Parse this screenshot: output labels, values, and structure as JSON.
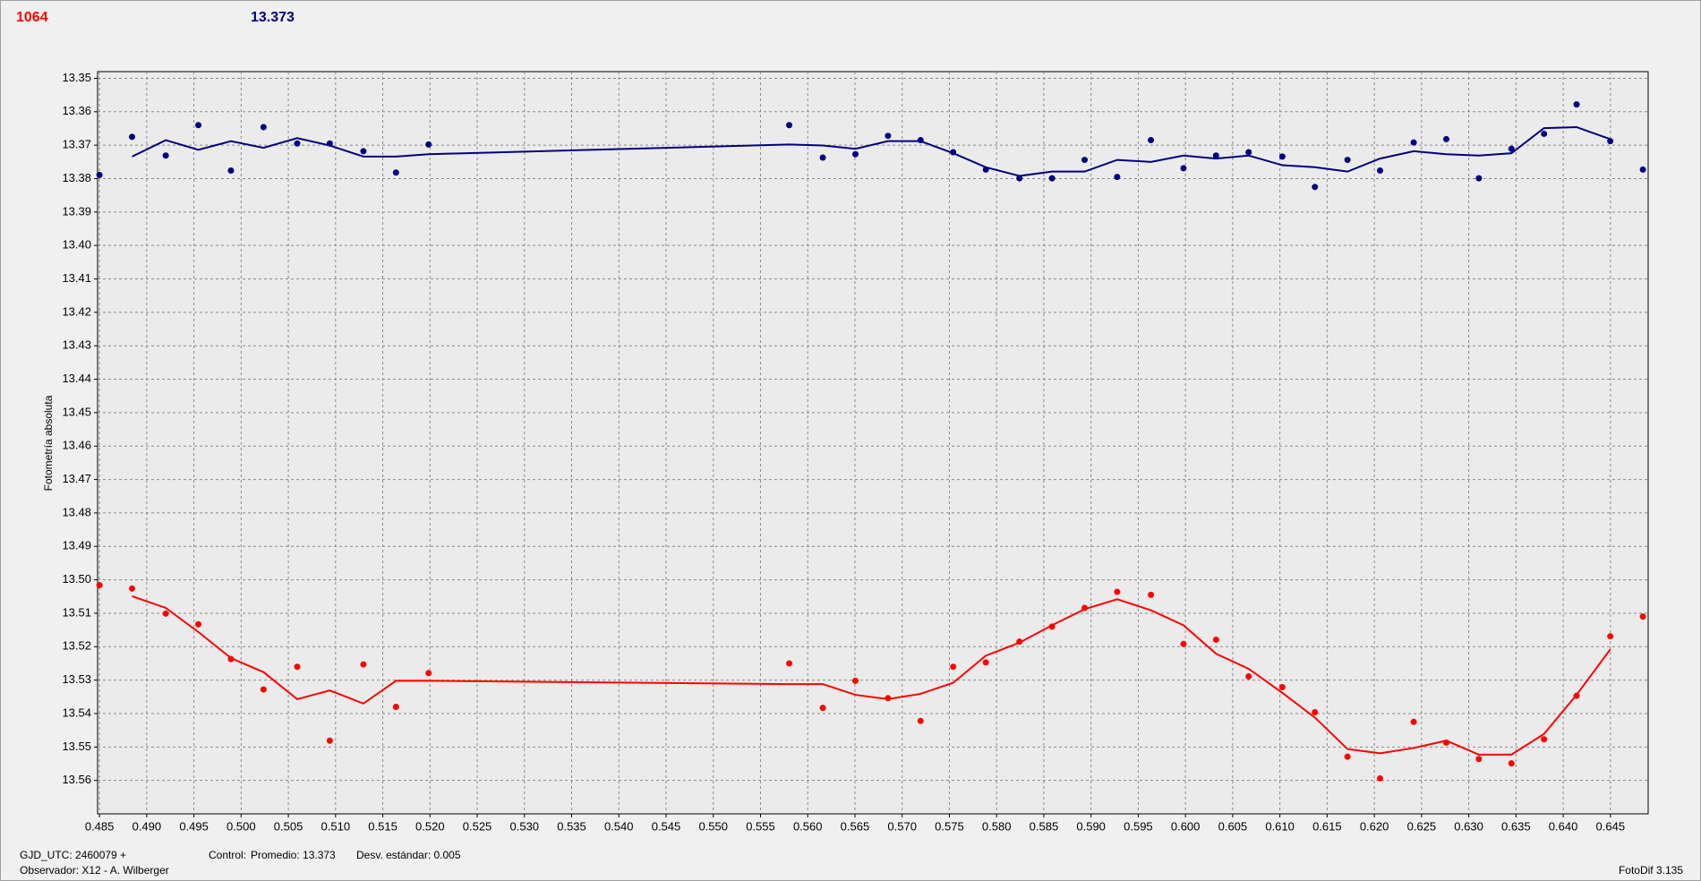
{
  "header": {
    "left_value": "1064",
    "right_value": "13.373"
  },
  "footer": {
    "gjd": "GJD_UTC: 2460079 +",
    "observer": "Observador: X12 - A. Wilberger",
    "control": "Control:",
    "mean": "Promedio: 13.373",
    "stdev": "Desv. estándar: 0.005",
    "version": "FotoDif 3.135"
  },
  "chart_data": {
    "type": "scatter",
    "y_label": "Fotometría absoluta",
    "x": [
      0.485,
      0.48845,
      0.49202,
      0.49547,
      0.49892,
      0.50237,
      0.50594,
      0.50939,
      0.51295,
      0.5164,
      0.51985,
      0.55804,
      0.5616,
      0.56505,
      0.5685,
      0.57195,
      0.5754,
      0.57886,
      0.58242,
      0.58587,
      0.58932,
      0.59277,
      0.59634,
      0.59979,
      0.60324,
      0.60669,
      0.61026,
      0.61371,
      0.61716,
      0.62061,
      0.62417,
      0.62762,
      0.63107,
      0.63452,
      0.63797,
      0.64142,
      0.64499,
      0.64844
    ],
    "series": [
      {
        "style": "markers",
        "color": "#000080",
        "values": [
          13.3789,
          13.3675,
          13.3731,
          13.364,
          13.3776,
          13.3646,
          13.3695,
          13.3695,
          13.3718,
          13.3782,
          13.3698,
          13.364,
          13.3737,
          13.3727,
          13.3672,
          13.3685,
          13.3721,
          13.3773,
          13.3799,
          13.3799,
          13.3744,
          13.3795,
          13.3685,
          13.3769,
          13.3731,
          13.3721,
          13.3734,
          13.3825,
          13.3744,
          13.3776,
          13.3692,
          13.3682,
          13.3799,
          13.3711,
          13.3666,
          13.3578,
          13.3688,
          13.3773
        ]
      },
      {
        "style": "line",
        "color": "#000080",
        "values": [
          null,
          13.3734,
          13.3685,
          13.3714,
          13.3688,
          13.3708,
          13.3679,
          13.3701,
          13.3734,
          13.3734,
          13.3727,
          13.3698,
          13.3701,
          13.3711,
          13.3688,
          13.3688,
          13.3724,
          13.3766,
          13.3792,
          13.3779,
          13.3779,
          13.3744,
          13.375,
          13.3731,
          13.374,
          13.3731,
          13.376,
          13.3766,
          13.3779,
          13.374,
          13.3718,
          13.3727,
          13.3731,
          13.3724,
          13.3649,
          13.3646,
          13.3682,
          null
        ]
      },
      {
        "style": "markers",
        "color": "#ff0000",
        "values": [
          13.5016,
          13.5026,
          13.5101,
          13.5133,
          13.5237,
          13.5328,
          13.526,
          13.5481,
          13.5253,
          13.538,
          13.5279,
          13.525,
          13.5383,
          13.5302,
          13.5354,
          13.5422,
          13.526,
          13.5247,
          13.5185,
          13.514,
          13.5084,
          13.5036,
          13.5045,
          13.5192,
          13.5179,
          13.5289,
          13.5321,
          13.5396,
          13.5529,
          13.5594,
          13.5425,
          13.5487,
          13.5536,
          13.5549,
          13.5477,
          13.5347,
          13.5169,
          13.511
        ]
      },
      {
        "style": "line",
        "color": "#ff0000",
        "values": [
          null,
          13.5049,
          13.5084,
          13.5156,
          13.5234,
          13.5276,
          13.5357,
          13.5331,
          13.537,
          13.5302,
          13.5302,
          13.5312,
          13.5312,
          13.5344,
          13.5357,
          13.5341,
          13.5308,
          13.5227,
          13.5188,
          13.5136,
          13.5088,
          13.5058,
          13.5091,
          13.5136,
          13.5221,
          13.5266,
          13.5338,
          13.5412,
          13.5506,
          13.5519,
          13.5503,
          13.5481,
          13.5523,
          13.5523,
          13.5461,
          13.5344,
          13.5208,
          null
        ]
      }
    ],
    "xlim": [
      0.4848,
      0.649
    ],
    "ylim": [
      13.348,
      13.57
    ],
    "y_inverted": true,
    "grid": true,
    "xticks": [
      0.485,
      {
        "value": 0.49,
        "label": "0.490"
      },
      0.495,
      {
        "value": 0.5,
        "label": "0.500"
      },
      0.505,
      {
        "value": 0.51,
        "label": "0.510"
      },
      0.515,
      {
        "value": 0.52,
        "label": "0.520"
      },
      0.525,
      {
        "value": 0.53,
        "label": "0.530"
      },
      0.535,
      {
        "value": 0.54,
        "label": "0.540"
      },
      0.545,
      {
        "value": 0.55,
        "label": "0.550"
      },
      0.555,
      {
        "value": 0.56,
        "label": "0.560"
      },
      0.565,
      {
        "value": 0.57,
        "label": "0.570"
      },
      0.575,
      {
        "value": 0.58,
        "label": "0.580"
      },
      0.585,
      {
        "value": 0.59,
        "label": "0.590"
      },
      0.595,
      {
        "value": 0.6,
        "label": "0.600"
      },
      0.605,
      {
        "value": 0.61,
        "label": "0.610"
      },
      0.615,
      {
        "value": 0.62,
        "label": "0.620"
      },
      0.625,
      {
        "value": 0.63,
        "label": "0.630"
      },
      0.635,
      {
        "value": 0.64,
        "label": "0.640"
      },
      0.645
    ],
    "yticks": [
      13.35,
      13.36,
      13.37,
      13.38,
      13.39,
      {
        "value": 13.4,
        "label": "13.40"
      },
      13.41,
      13.42,
      13.43,
      13.44,
      13.45,
      13.46,
      13.47,
      13.48,
      13.49,
      {
        "value": 13.5,
        "label": "13.50"
      },
      13.51,
      13.52,
      13.53,
      13.54,
      13.55,
      13.56
    ]
  }
}
